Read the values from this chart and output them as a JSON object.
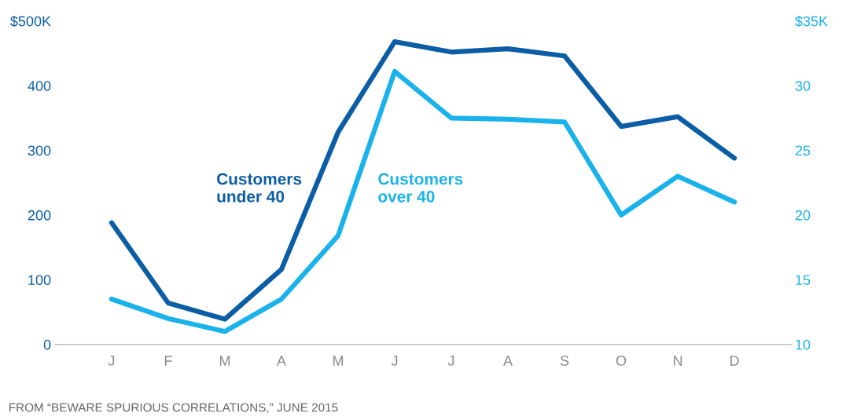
{
  "chart_data": {
    "type": "line",
    "categories": [
      "J",
      "F",
      "M",
      "A",
      "M",
      "J",
      "J",
      "A",
      "S",
      "O",
      "N",
      "D"
    ],
    "series": [
      {
        "name": "Customers under 40",
        "color": "#0b5da5",
        "values": [
          188,
          64,
          39,
          116,
          328,
          468,
          452,
          457,
          446,
          337,
          352,
          288
        ]
      },
      {
        "name": "Customers over 40",
        "color": "#1ab2ea",
        "axis": "y2",
        "values": [
          13.5,
          12.0,
          11.0,
          13.5,
          18.4,
          31.1,
          27.5,
          27.4,
          27.2,
          20.0,
          23.0,
          21.0
        ]
      }
    ],
    "ylim": [
      0,
      500
    ],
    "yticks": [
      0,
      100,
      200,
      300,
      400,
      {
        "value": 500,
        "label": "$500K"
      }
    ],
    "y2lim": [
      10,
      35
    ],
    "y2ticks": [
      10,
      15,
      20,
      25,
      30,
      {
        "value": 35,
        "label": "$35K"
      }
    ],
    "grid": false,
    "legend": false,
    "marker": "none",
    "line_style": "solid",
    "annotations": [
      "FROM “BEWARE SPURIOUS CORRELATIONS,” JUNE 2015"
    ]
  }
}
